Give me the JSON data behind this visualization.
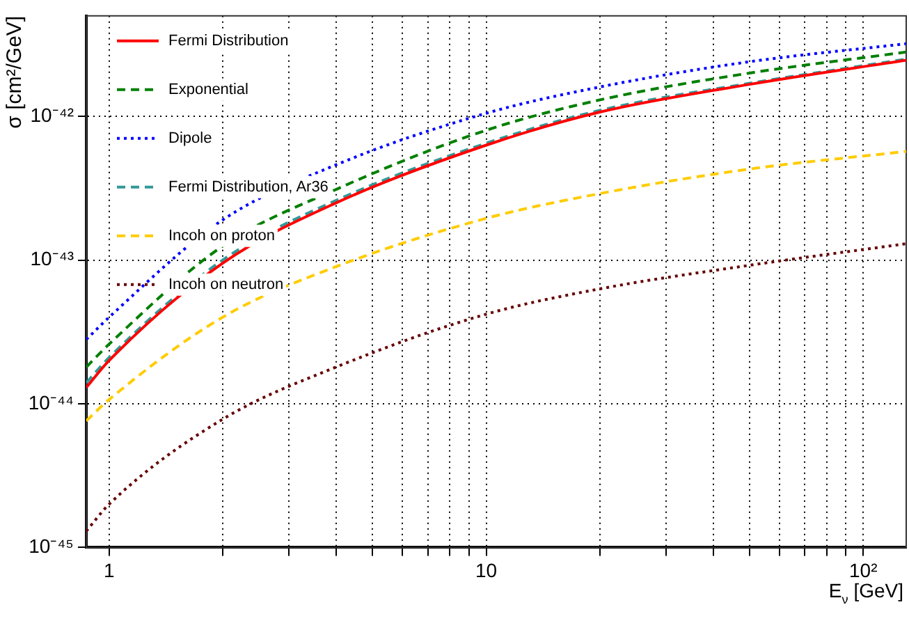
{
  "chart_data": {
    "type": "line",
    "xlabel": "E$_{ν}$ [GeV]",
    "ylabel": "σ [cm²/GeV]",
    "log": "xy",
    "grid": true,
    "legend": "top left",
    "marker": "none",
    "x": [
      0.87,
      1,
      2,
      4,
      10,
      20,
      50,
      130
    ],
    "xlim": [
      0.87,
      130
    ],
    "ylim": [
      1e-45,
      5e-42
    ],
    "xticks": [
      1,
      {
        "value": 2,
        "label": null
      },
      {
        "value": 3,
        "label": null
      },
      {
        "value": 4,
        "label": null
      },
      {
        "value": 5,
        "label": null
      },
      {
        "value": 6,
        "label": null
      },
      {
        "value": 7,
        "label": null
      },
      {
        "value": 8,
        "label": null
      },
      {
        "value": 9,
        "label": null
      },
      10,
      {
        "value": 20,
        "label": null
      },
      {
        "value": 30,
        "label": null
      },
      {
        "value": 40,
        "label": null
      },
      {
        "value": 50,
        "label": null
      },
      {
        "value": 60,
        "label": null
      },
      {
        "value": 70,
        "label": null
      },
      {
        "value": 80,
        "label": null
      },
      {
        "value": 90,
        "label": null
      },
      {
        "value": 100,
        "label": "10²"
      }
    ],
    "yticks": [
      {
        "value": 1e-45,
        "label": "10⁻⁴⁵"
      },
      {
        "value": 1e-44,
        "label": "10⁻⁴⁴"
      },
      {
        "value": 1e-43,
        "label": "10⁻⁴³"
      },
      {
        "value": 1e-42,
        "label": "10⁻⁴²"
      }
    ],
    "series": [
      {
        "name": "Fermi Distribution",
        "color": "#ff0000",
        "line_style": "solid",
        "values": [
          1.3e-44,
          2e-44,
          9.5e-44,
          2.5e-43,
          6.3e-43,
          1.07e-42,
          1.67e-42,
          2.46e-42
        ]
      },
      {
        "name": "Exponential",
        "color": "#007f00",
        "line_style": "dashed",
        "values": [
          1.8e-44,
          2.6e-44,
          1.25e-43,
          3.1e-43,
          8e-43,
          1.3e-42,
          2e-42,
          2.8e-42
        ]
      },
      {
        "name": "Dipole",
        "color": "#0000ff",
        "line_style": "dotted",
        "values": [
          2.8e-44,
          4e-44,
          1.9e-43,
          4.6e-43,
          1.05e-42,
          1.6e-42,
          2.4e-42,
          3.2e-42
        ]
      },
      {
        "name": "Fermi Distribution, Ar36",
        "color": "#339999",
        "line_style": "dashed",
        "values": [
          1.4e-44,
          2.1e-44,
          1e-43,
          2.6e-43,
          6.5e-43,
          1.1e-42,
          1.7e-42,
          2.5e-42
        ]
      },
      {
        "name": "Incoh on proton",
        "color": "#ffcc00",
        "line_style": "dashed",
        "values": [
          7.6e-45,
          1.07e-44,
          4e-44,
          9e-44,
          1.95e-43,
          2.9e-43,
          4.3e-43,
          5.7e-43
        ]
      },
      {
        "name": "Incoh on neutron",
        "color": "#660000",
        "line_style": "dotted",
        "values": [
          1.3e-45,
          2e-45,
          7.8e-45,
          1.8e-44,
          4.2e-44,
          6.3e-44,
          9.2e-44,
          1.3e-43
        ]
      }
    ]
  }
}
